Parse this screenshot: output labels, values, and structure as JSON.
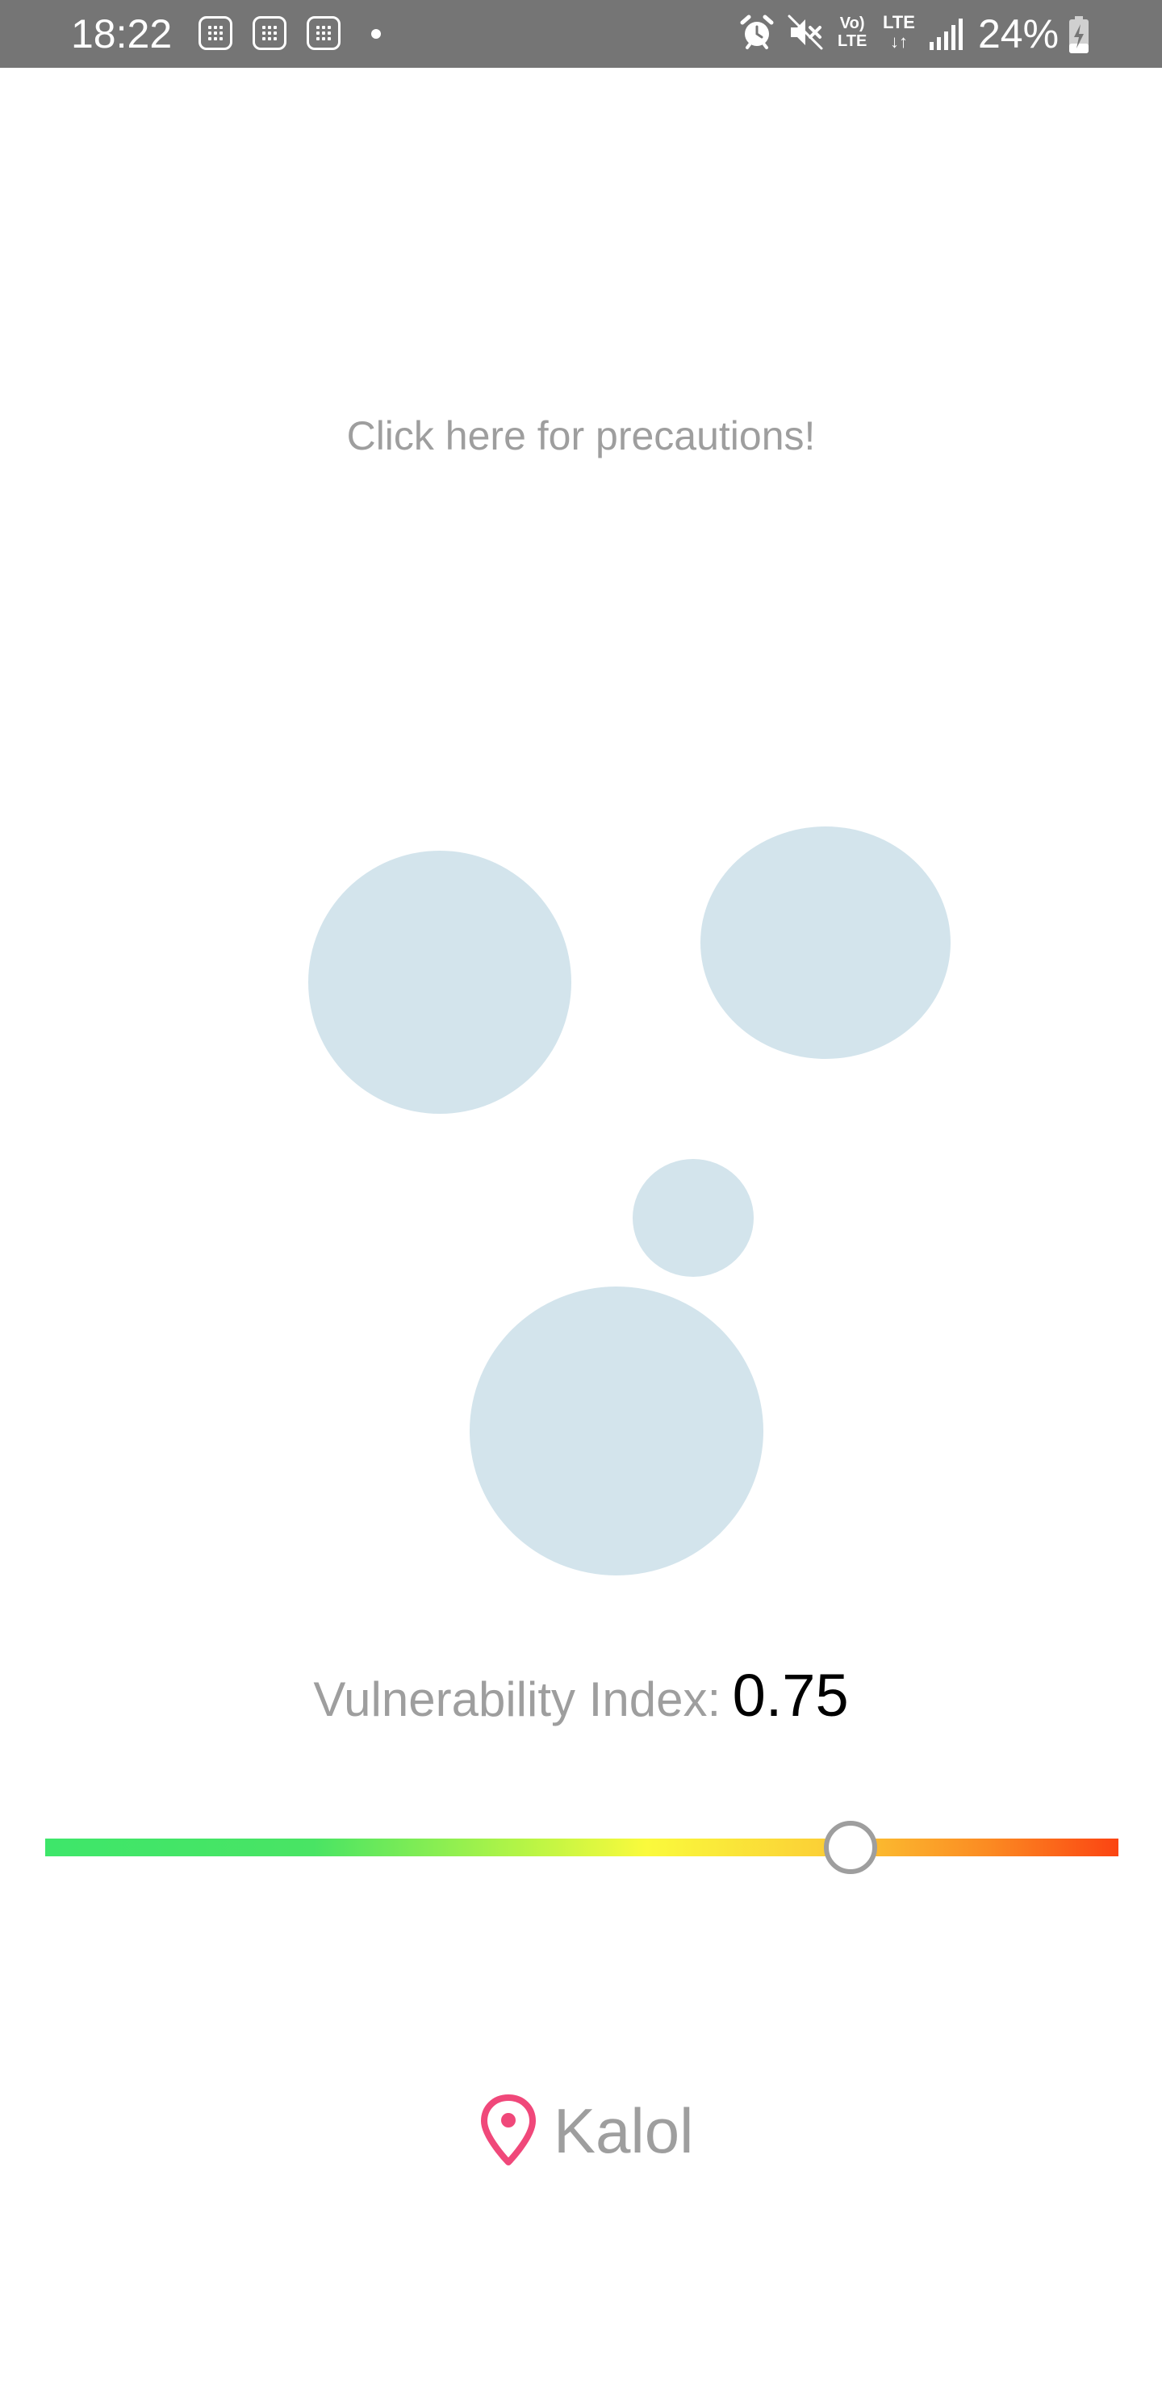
{
  "status_bar": {
    "time": "18:22",
    "volte_top": "Vo)",
    "volte_bottom": "LTE",
    "lte_label": "LTE",
    "lte_arrows": "↓↑",
    "battery": "24%"
  },
  "main": {
    "precautions_link": "Click here for precautions!",
    "vulnerability_label": "Vulnerability Index:",
    "vulnerability_value": "0.75",
    "slider": {
      "value": 0.75,
      "min": 0,
      "max": 1,
      "gradient_colors": [
        "#3ee66a",
        "#fafa3c",
        "#fb4412"
      ]
    },
    "location_name": "Kalol",
    "location_icon": "map-pin-icon",
    "location_icon_color": "#f0487a",
    "bubble_color": "#d3e4ec"
  }
}
